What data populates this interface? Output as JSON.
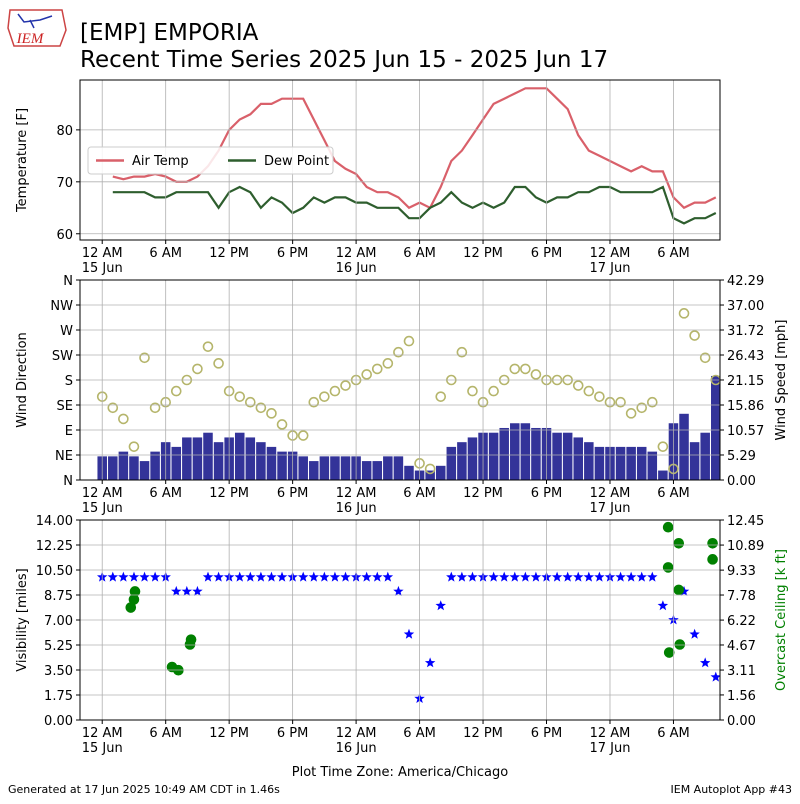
{
  "title": [
    "[EMP] EMPORIA",
    "Recent Time Series 2025 Jun 15 - 2025 Jun 17"
  ],
  "logo_text": "IEM",
  "footer_left": "Generated at 17 Jun 2025 10:49 AM CDT in 1.46s",
  "footer_right": "IEM Autoplot App #43",
  "chart_data": [
    {
      "type": "line",
      "ylabel": "Temperature [F]",
      "grid": true,
      "legend": "center left",
      "xlim": [
        -2.1,
        58.4
      ],
      "ylim": [
        58.8,
        89.6
      ],
      "yticks": [
        60,
        70,
        80
      ],
      "xticks": [
        {
          "value": 0,
          "label": "12 AM\n15 Jun"
        },
        {
          "value": 6,
          "label": "6 AM"
        },
        {
          "value": 12,
          "label": "12 PM"
        },
        {
          "value": 18,
          "label": "6 PM"
        },
        {
          "value": 24,
          "label": "12 AM\n16 Jun"
        },
        {
          "value": 30,
          "label": "6 AM"
        },
        {
          "value": 36,
          "label": "12 PM"
        },
        {
          "value": 42,
          "label": "6 PM"
        },
        {
          "value": 48,
          "label": "12 AM\n17 Jun"
        },
        {
          "value": 54,
          "label": "6 AM"
        }
      ],
      "x": [
        1,
        2,
        3,
        4,
        5,
        6,
        7,
        8,
        9,
        10,
        11,
        12,
        13,
        14,
        15,
        16,
        17,
        18,
        19,
        20,
        21,
        22,
        23,
        24,
        25,
        26,
        27,
        28,
        29,
        30,
        31,
        32,
        33,
        34,
        35,
        36,
        37,
        38,
        39,
        40,
        41,
        42,
        43,
        44,
        45,
        46,
        47,
        48,
        49,
        50,
        51,
        52,
        53,
        54,
        55,
        56,
        57,
        58
      ],
      "series": [
        {
          "name": "Air Temp",
          "color": "#d9606a",
          "values": [
            71,
            70.5,
            71,
            71,
            71.5,
            71,
            70,
            70,
            71,
            73,
            76,
            80,
            82,
            83,
            85,
            85,
            86,
            86,
            86,
            82,
            78,
            74,
            72.5,
            71.5,
            69,
            68,
            68,
            67,
            65,
            66,
            65,
            69,
            74,
            76,
            79,
            82,
            85,
            86,
            87,
            88,
            88,
            88,
            86,
            84,
            79,
            76,
            75,
            74,
            73,
            72,
            73,
            72,
            72,
            67,
            65,
            66,
            66,
            67
          ]
        },
        {
          "name": "Dew Point",
          "color": "#2e5e2e",
          "values": [
            68,
            68,
            68,
            68,
            67,
            67,
            68,
            68,
            68,
            68,
            65,
            68,
            69,
            68,
            65,
            67,
            66,
            64,
            65,
            67,
            66,
            67,
            67,
            66,
            66,
            65,
            65,
            65,
            63,
            63,
            65,
            66,
            68,
            66,
            65,
            66,
            65,
            66,
            69,
            69,
            67,
            66,
            67,
            67,
            68,
            68,
            69,
            69,
            68,
            68,
            68,
            68,
            69,
            63,
            62,
            63,
            63,
            64
          ]
        }
      ]
    },
    {
      "type": "bar",
      "ylabel": "Wind Direction",
      "y2label": "Wind Speed [mph]",
      "grid": true,
      "xlim": [
        -2.1,
        58.4
      ],
      "ylim": [
        0,
        360
      ],
      "y2lim": [
        0,
        42.29
      ],
      "xticks": [
        {
          "value": 0,
          "label": "12 AM\n15 Jun"
        },
        {
          "value": 6,
          "label": "6 AM"
        },
        {
          "value": 12,
          "label": "12 PM"
        },
        {
          "value": 18,
          "label": "6 PM"
        },
        {
          "value": 24,
          "label": "12 AM\n16 Jun"
        },
        {
          "value": 30,
          "label": "6 AM"
        },
        {
          "value": 36,
          "label": "12 PM"
        },
        {
          "value": 42,
          "label": "6 PM"
        },
        {
          "value": 48,
          "label": "12 AM\n17 Jun"
        },
        {
          "value": 54,
          "label": "6 AM"
        }
      ],
      "yticks": [
        {
          "value": 0,
          "label": "N"
        },
        {
          "value": 45,
          "label": "NE"
        },
        {
          "value": 90,
          "label": "E"
        },
        {
          "value": 135,
          "label": "SE"
        },
        {
          "value": 180,
          "label": "S"
        },
        {
          "value": 225,
          "label": "SW"
        },
        {
          "value": 270,
          "label": "W"
        },
        {
          "value": 315,
          "label": "NW"
        },
        {
          "value": 360,
          "label": "N"
        }
      ],
      "y2ticks": [
        {
          "value": 0,
          "label": "0.00"
        },
        5.29,
        10.57,
        15.86,
        21.15,
        26.43,
        31.72,
        {
          "value": 37,
          "label": "37.00"
        },
        42.29
      ],
      "x": [
        0,
        1,
        2,
        3,
        4,
        5,
        6,
        7,
        8,
        9,
        10,
        11,
        12,
        13,
        14,
        15,
        16,
        17,
        18,
        19,
        20,
        21,
        22,
        23,
        24,
        25,
        26,
        27,
        28,
        29,
        30,
        31,
        32,
        33,
        34,
        35,
        36,
        37,
        38,
        39,
        40,
        41,
        42,
        43,
        44,
        45,
        46,
        47,
        48,
        49,
        50,
        51,
        52,
        53,
        54,
        55,
        56,
        57,
        58
      ],
      "series": [
        {
          "type": "bar",
          "axis": "y2",
          "color": "#333399",
          "values": [
            5,
            5,
            6,
            5,
            4,
            6,
            8,
            7,
            9,
            9,
            10,
            8,
            9,
            10,
            9,
            8,
            7,
            6,
            6,
            5,
            4,
            5,
            5,
            5,
            5,
            4,
            4,
            5,
            5,
            3,
            2,
            2,
            3,
            7,
            8,
            9,
            10,
            10,
            11,
            12,
            12,
            11,
            11,
            10,
            10,
            9,
            8,
            7,
            7,
            7,
            7,
            7,
            6,
            2,
            12,
            14,
            8,
            10,
            22
          ]
        },
        {
          "type": "scatter",
          "marker": "circle",
          "filled": false,
          "color": "#b5b56b",
          "values": [
            150,
            130,
            110,
            60,
            220,
            130,
            140,
            160,
            180,
            200,
            240,
            210,
            160,
            150,
            140,
            130,
            120,
            100,
            80,
            80,
            140,
            150,
            160,
            170,
            180,
            190,
            200,
            210,
            230,
            250,
            30,
            20,
            150,
            180,
            230,
            160,
            140,
            160,
            180,
            200,
            200,
            190,
            180,
            180,
            180,
            170,
            160,
            150,
            140,
            140,
            120,
            130,
            140,
            60,
            20,
            300,
            260,
            220,
            180
          ]
        }
      ]
    },
    {
      "type": "scatter",
      "ylabel": "Visibility [miles]",
      "y2label": "Overcast Ceiling [k ft]",
      "y2label_color": "#008000",
      "xlabel": "Plot Time Zone: America/Chicago",
      "grid": true,
      "xlim": [
        -2.1,
        58.4
      ],
      "ylim": [
        0,
        14
      ],
      "y2lim": [
        0,
        12.45
      ],
      "xticks": [
        {
          "value": 0,
          "label": "12 AM\n15 Jun"
        },
        {
          "value": 6,
          "label": "6 AM"
        },
        {
          "value": 12,
          "label": "12 PM"
        },
        {
          "value": 18,
          "label": "6 PM"
        },
        {
          "value": 24,
          "label": "12 AM\n16 Jun"
        },
        {
          "value": 30,
          "label": "6 AM"
        },
        {
          "value": 36,
          "label": "12 PM"
        },
        {
          "value": 42,
          "label": "6 PM"
        },
        {
          "value": 48,
          "label": "12 AM\n17 Jun"
        },
        {
          "value": 54,
          "label": "6 AM"
        }
      ],
      "yticks": [
        {
          "value": 0,
          "label": "0.00"
        },
        1.75,
        {
          "value": 3.5,
          "label": "3.50"
        },
        5.25,
        {
          "value": 7,
          "label": "7.00"
        },
        8.75,
        {
          "value": 10.5,
          "label": "10.50"
        },
        12.25,
        {
          "value": 14,
          "label": "14.00"
        }
      ],
      "y2ticks": [
        {
          "value": 0,
          "label": "0.00"
        },
        1.56,
        3.11,
        4.67,
        6.22,
        7.78,
        9.33,
        10.89,
        12.45
      ],
      "series": [
        {
          "marker": "star",
          "color": "#0000ff",
          "x": [
            0,
            1,
            2,
            3,
            4,
            5,
            6,
            7,
            8,
            9,
            10,
            11,
            12,
            13,
            14,
            15,
            16,
            17,
            18,
            19,
            20,
            21,
            22,
            23,
            24,
            25,
            26,
            27,
            28,
            29,
            30,
            31,
            32,
            33,
            34,
            35,
            36,
            37,
            38,
            39,
            40,
            41,
            42,
            43,
            44,
            45,
            46,
            47,
            48,
            49,
            50,
            51,
            52,
            53,
            54,
            55,
            56,
            57,
            58
          ],
          "values": [
            10,
            10,
            10,
            10,
            10,
            10,
            10,
            9,
            9,
            9,
            10,
            10,
            10,
            10,
            10,
            10,
            10,
            10,
            10,
            10,
            10,
            10,
            10,
            10,
            10,
            10,
            10,
            10,
            9,
            6,
            1.5,
            4,
            8,
            10,
            10,
            10,
            10,
            10,
            10,
            10,
            10,
            10,
            10,
            10,
            10,
            10,
            10,
            10,
            10,
            10,
            10,
            10,
            10,
            8,
            7,
            9,
            6,
            4,
            3
          ]
        },
        {
          "marker": "circle",
          "filled": true,
          "axis": "y2",
          "color": "#008000",
          "x": [
            2.7,
            3.0,
            3.1,
            6.6,
            7.2,
            8.3,
            8.4,
            53.5,
            53.5,
            53.6,
            54.5,
            54.5,
            54.6,
            57.7,
            57.7
          ],
          "values": [
            7.0,
            7.5,
            8.0,
            3.3,
            3.1,
            4.7,
            5.0,
            12.0,
            9.5,
            4.2,
            11.0,
            8.1,
            4.7,
            11.0,
            10.0
          ]
        }
      ]
    }
  ]
}
